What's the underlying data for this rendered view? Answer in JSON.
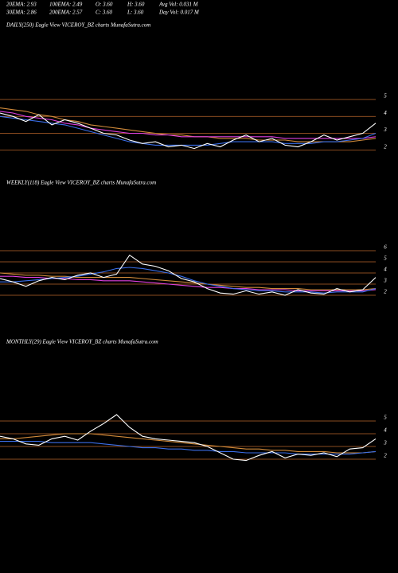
{
  "header": {
    "rows": [
      [
        "20EMA: 2.93",
        "100EMA: 2.49",
        "O: 3.60",
        "H: 3.60",
        "Avg Vol: 0.031 M"
      ],
      [
        "30EMA: 2.86",
        "200EMA: 2.57",
        "C: 3.60",
        "L: 3.60",
        "Day Vol: 0.017 M"
      ]
    ]
  },
  "chart_data": [
    {
      "type": "line",
      "title": "DAILY(250) Eagle  View  VICEROY_BZ charts MunafaSutra.com",
      "ylim": [
        1,
        9
      ],
      "yticks": [
        2,
        3,
        4,
        5
      ],
      "grid": true,
      "grid_color": "#b8652a",
      "series": [
        {
          "color": "#d08a3a",
          "values": [
            4.5,
            4.4,
            4.3,
            4.1,
            4.0,
            3.8,
            3.7,
            3.5,
            3.4,
            3.3,
            3.2,
            3.1,
            3.0,
            2.9,
            2.9,
            2.8,
            2.8,
            2.7,
            2.7,
            2.7,
            2.6,
            2.6,
            2.6,
            2.5,
            2.5,
            2.5,
            2.5,
            2.5,
            2.6,
            2.7
          ]
        },
        {
          "color": "#e040e0",
          "values": [
            4.3,
            4.2,
            4.0,
            3.9,
            3.8,
            3.6,
            3.5,
            3.3,
            3.2,
            3.1,
            3.0,
            3.0,
            2.9,
            2.9,
            2.8,
            2.8,
            2.8,
            2.8,
            2.8,
            2.8,
            2.8,
            2.8,
            2.7,
            2.7,
            2.7,
            2.7,
            2.7,
            2.7,
            2.7,
            2.8
          ]
        },
        {
          "color": "#3a6ee8",
          "values": [
            4.0,
            3.9,
            3.8,
            3.7,
            3.6,
            3.5,
            3.3,
            3.1,
            2.9,
            2.7,
            2.5,
            2.4,
            2.3,
            2.3,
            2.3,
            2.3,
            2.3,
            2.4,
            2.5,
            2.5,
            2.5,
            2.5,
            2.4,
            2.4,
            2.4,
            2.5,
            2.5,
            2.6,
            2.7,
            3.0
          ]
        },
        {
          "color": "#ffffff",
          "values": [
            4.2,
            4.0,
            3.7,
            4.1,
            3.5,
            3.8,
            3.6,
            3.3,
            3.0,
            2.9,
            2.6,
            2.4,
            2.5,
            2.2,
            2.3,
            2.1,
            2.4,
            2.2,
            2.6,
            2.9,
            2.5,
            2.7,
            2.3,
            2.2,
            2.5,
            2.9,
            2.6,
            2.8,
            3.0,
            3.6
          ]
        }
      ]
    },
    {
      "type": "line",
      "title": "WEEKLY(118) Eagle  View  VICEROY_BZ charts MunafaSutra.com",
      "ylim": [
        1,
        11.5
      ],
      "yticks": [
        2,
        3,
        4,
        5,
        6
      ],
      "grid": true,
      "grid_color": "#b8652a",
      "series": [
        {
          "color": "#d08a3a",
          "values": [
            4.0,
            3.9,
            3.8,
            3.8,
            3.7,
            3.7,
            3.6,
            3.6,
            3.6,
            3.6,
            3.6,
            3.5,
            3.4,
            3.3,
            3.2,
            3.1,
            3.0,
            2.9,
            2.8,
            2.7,
            2.7,
            2.6,
            2.6,
            2.6,
            2.5,
            2.5,
            2.5,
            2.5,
            2.5,
            2.6
          ]
        },
        {
          "color": "#e040e0",
          "values": [
            3.7,
            3.7,
            3.6,
            3.6,
            3.5,
            3.5,
            3.4,
            3.4,
            3.3,
            3.3,
            3.3,
            3.2,
            3.1,
            3.0,
            2.9,
            2.8,
            2.7,
            2.7,
            2.6,
            2.6,
            2.5,
            2.5,
            2.5,
            2.4,
            2.4,
            2.4,
            2.4,
            2.4,
            2.4,
            2.5
          ]
        },
        {
          "color": "#3a6ee8",
          "values": [
            3.2,
            3.2,
            3.3,
            3.4,
            3.5,
            3.6,
            3.7,
            3.9,
            4.1,
            4.4,
            4.5,
            4.4,
            4.2,
            4.0,
            3.7,
            3.3,
            3.0,
            2.8,
            2.6,
            2.5,
            2.4,
            2.4,
            2.3,
            2.3,
            2.3,
            2.2,
            2.3,
            2.3,
            2.3,
            2.6
          ]
        },
        {
          "color": "#ffffff",
          "values": [
            3.5,
            3.2,
            2.8,
            3.3,
            3.6,
            3.4,
            3.8,
            4.0,
            3.6,
            3.9,
            5.6,
            4.8,
            4.6,
            4.2,
            3.5,
            3.2,
            2.6,
            2.2,
            2.1,
            2.4,
            2.1,
            2.3,
            2.0,
            2.5,
            2.2,
            2.1,
            2.6,
            2.3,
            2.5,
            3.6
          ]
        }
      ]
    },
    {
      "type": "line",
      "title": "MONTHLY(29) Eagle  View  VICEROY_BZ charts MunafaSutra.com",
      "ylim": [
        1,
        10.5
      ],
      "yticks": [
        2,
        3,
        4,
        5
      ],
      "grid": true,
      "grid_color": "#b8652a",
      "series": [
        {
          "color": "#d08a3a",
          "values": [
            3.6,
            3.6,
            3.7,
            3.8,
            3.9,
            4.0,
            4.0,
            4.0,
            3.9,
            3.8,
            3.7,
            3.6,
            3.5,
            3.4,
            3.3,
            3.2,
            3.1,
            3.0,
            2.9,
            2.8,
            2.8,
            2.7,
            2.7,
            2.6,
            2.6,
            2.6,
            2.5,
            2.5,
            2.5,
            2.6
          ]
        },
        {
          "color": "#3a6ee8",
          "values": [
            3.4,
            3.4,
            3.4,
            3.4,
            3.3,
            3.3,
            3.3,
            3.3,
            3.2,
            3.1,
            3.0,
            2.9,
            2.9,
            2.8,
            2.8,
            2.7,
            2.7,
            2.6,
            2.6,
            2.5,
            2.5,
            2.5,
            2.5,
            2.4,
            2.4,
            2.4,
            2.4,
            2.4,
            2.5,
            2.6
          ]
        },
        {
          "color": "#ffffff",
          "values": [
            3.8,
            3.6,
            3.2,
            3.1,
            3.6,
            3.8,
            3.5,
            4.2,
            4.8,
            5.5,
            4.5,
            3.8,
            3.6,
            3.5,
            3.4,
            3.3,
            3.0,
            2.5,
            2.0,
            1.9,
            2.3,
            2.6,
            2.1,
            2.4,
            2.3,
            2.5,
            2.2,
            2.8,
            2.9,
            3.6
          ]
        }
      ]
    }
  ]
}
